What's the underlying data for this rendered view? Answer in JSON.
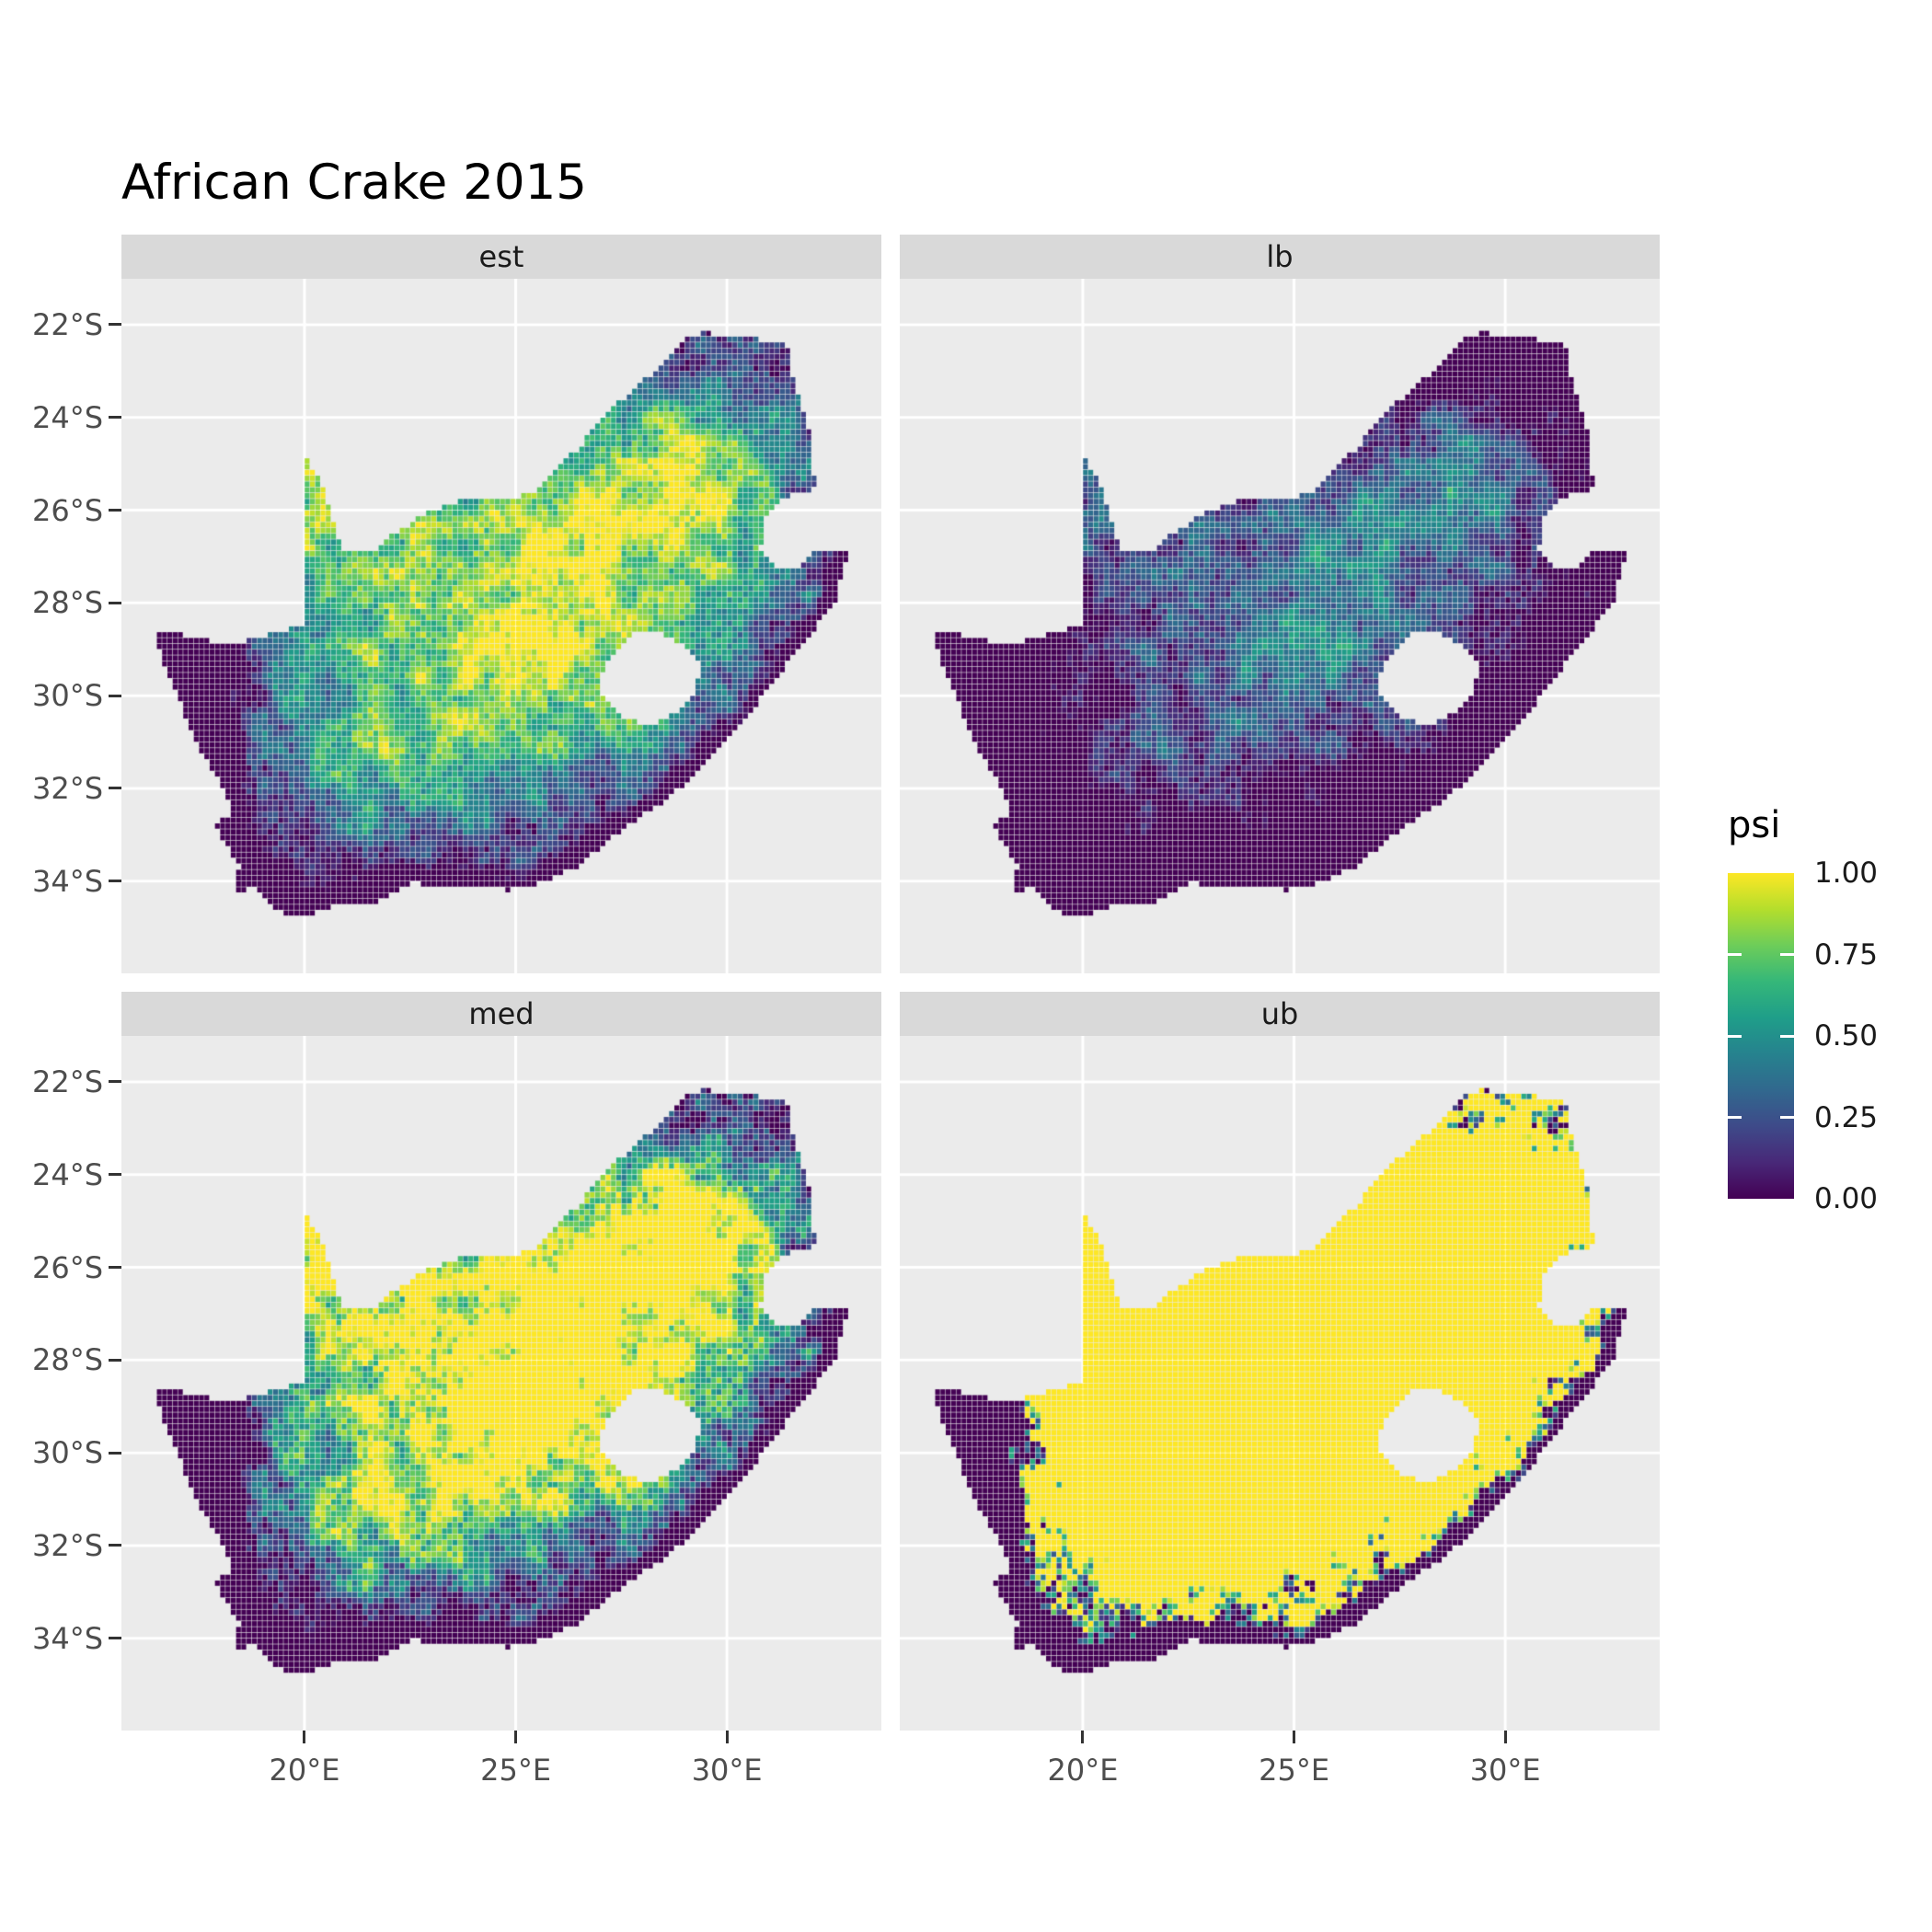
{
  "title": "African Crake 2015",
  "facets": [
    {
      "label": "est"
    },
    {
      "label": "lb"
    },
    {
      "label": "med"
    },
    {
      "label": "ub"
    }
  ],
  "axes": {
    "x_tick_labels": [
      "20°E",
      "25°E",
      "30°E"
    ],
    "y_tick_labels": [
      "22°S",
      "24°S",
      "26°S",
      "28°S",
      "30°S",
      "32°S",
      "34°S"
    ]
  },
  "legend": {
    "title": "psi",
    "tick_labels": [
      "1.00",
      "0.75",
      "0.50",
      "0.25",
      "0.00"
    ]
  },
  "style": {
    "page_bg": "#FFFFFF",
    "panel_bg": "#EBEBEB",
    "strip_bg": "#D9D9D9",
    "grid_color": "#FFFFFF",
    "axis_text_color": "#4D4D4D",
    "tick_mark_color": "#333333",
    "strip_text_color": "#1A1A1A",
    "title_color": "#000000"
  },
  "chart_data": {
    "type": "heatmap",
    "title": "African Crake 2015",
    "region": "South Africa occupancy raster (faceted map)",
    "facet_values": [
      "est",
      "lb",
      "med",
      "ub"
    ],
    "value_name": "psi",
    "value_range": [
      0.0,
      1.0
    ],
    "legend_tick_values": [
      1.0,
      0.75,
      0.5,
      0.25,
      0.0
    ],
    "x_breaks_deg_east": [
      20,
      25,
      30
    ],
    "y_breaks_deg_south": [
      22,
      24,
      26,
      28,
      30,
      32,
      34
    ],
    "x_range_deg_east": [
      15.667,
      33.655
    ],
    "y_range_deg_south": [
      21.008,
      35.99
    ],
    "grid": "major-only",
    "legend_position": "right",
    "cell_deg": 0.125,
    "palette_viridis": [
      "#440154",
      "#482878",
      "#3E4A89",
      "#31688E",
      "#26828E",
      "#1F9E89",
      "#35B779",
      "#6DCD59",
      "#B4DE2C",
      "#FDE725"
    ],
    "boundary_lonlat": [
      [
        16.45,
        -28.6
      ],
      [
        17.3,
        -28.72
      ],
      [
        18.0,
        -28.86
      ],
      [
        18.8,
        -28.8
      ],
      [
        19.4,
        -28.62
      ],
      [
        20.0,
        -28.42
      ],
      [
        20.0,
        -24.8
      ],
      [
        20.35,
        -25.35
      ],
      [
        20.6,
        -25.95
      ],
      [
        20.78,
        -26.5
      ],
      [
        20.95,
        -26.88
      ],
      [
        21.6,
        -26.88
      ],
      [
        22.2,
        -26.45
      ],
      [
        22.9,
        -26.05
      ],
      [
        23.7,
        -25.8
      ],
      [
        24.45,
        -25.78
      ],
      [
        25.1,
        -25.7
      ],
      [
        25.55,
        -25.55
      ],
      [
        25.95,
        -25.05
      ],
      [
        26.5,
        -24.65
      ],
      [
        27.1,
        -23.95
      ],
      [
        27.8,
        -23.4
      ],
      [
        28.4,
        -22.9
      ],
      [
        29.05,
        -22.3
      ],
      [
        29.45,
        -22.15
      ],
      [
        30.0,
        -22.3
      ],
      [
        30.6,
        -22.3
      ],
      [
        31.1,
        -22.35
      ],
      [
        31.4,
        -22.35
      ],
      [
        31.55,
        -23.1
      ],
      [
        31.75,
        -23.7
      ],
      [
        31.95,
        -24.3
      ],
      [
        32.05,
        -25.1
      ],
      [
        32.1,
        -25.55
      ],
      [
        31.4,
        -25.72
      ],
      [
        30.95,
        -26.1
      ],
      [
        30.8,
        -26.8
      ],
      [
        31.15,
        -27.2
      ],
      [
        31.7,
        -27.3
      ],
      [
        32.15,
        -26.85
      ],
      [
        32.9,
        -26.86
      ],
      [
        32.55,
        -28.0
      ],
      [
        32.05,
        -28.6
      ],
      [
        31.35,
        -29.4
      ],
      [
        30.7,
        -30.2
      ],
      [
        30.05,
        -30.95
      ],
      [
        29.25,
        -31.7
      ],
      [
        28.4,
        -32.35
      ],
      [
        27.5,
        -32.9
      ],
      [
        26.45,
        -33.7
      ],
      [
        25.65,
        -34.02
      ],
      [
        24.85,
        -34.2
      ],
      [
        24.0,
        -34.1
      ],
      [
        23.35,
        -34.1
      ],
      [
        22.55,
        -34.05
      ],
      [
        21.7,
        -34.45
      ],
      [
        20.75,
        -34.48
      ],
      [
        20.0,
        -34.83
      ],
      [
        19.3,
        -34.62
      ],
      [
        18.8,
        -34.08
      ],
      [
        18.35,
        -34.3
      ],
      [
        18.45,
        -33.7
      ],
      [
        17.85,
        -32.8
      ],
      [
        18.3,
        -32.55
      ],
      [
        17.95,
        -31.8
      ],
      [
        17.35,
        -30.9
      ],
      [
        16.95,
        -29.9
      ],
      [
        16.6,
        -29.2
      ]
    ],
    "lesotho_hole_lonlat": [
      [
        27.0,
        -29.6
      ],
      [
        27.35,
        -29.05
      ],
      [
        27.75,
        -28.68
      ],
      [
        28.35,
        -28.62
      ],
      [
        28.95,
        -28.9
      ],
      [
        29.45,
        -29.35
      ],
      [
        29.2,
        -29.95
      ],
      [
        28.75,
        -30.4
      ],
      [
        28.1,
        -30.66
      ],
      [
        27.45,
        -30.4
      ],
      [
        27.05,
        -30.05
      ]
    ],
    "field_model": {
      "gaussians_amp_clon_clatS_slon_slat": [
        [
          0.99,
          25.3,
          28.1,
          3.4,
          2.7
        ],
        [
          0.93,
          28.9,
          25.6,
          2.0,
          1.8
        ],
        [
          0.8,
          20.6,
          25.9,
          1.1,
          1.7
        ],
        [
          0.6,
          22.3,
          30.8,
          2.6,
          1.5
        ]
      ],
      "base_scale": 1.08,
      "base_offset": -0.06,
      "west_edge_lon": 19.3,
      "west_rate": 0.3,
      "coast_start_index": 40,
      "coast_fall_max": 0.5,
      "coast_fall_rate": 0.9,
      "noise_octaves_scale_amp": [
        [
          0.55,
          0.42
        ],
        [
          0.22,
          0.28
        ]
      ],
      "cell_jitter_amp": 0.22
    },
    "panel_transforms": {
      "est": [
        1.0,
        0.0
      ],
      "lb": [
        0.85,
        -0.408
      ],
      "med": [
        1.45,
        -0.12
      ],
      "ub": [
        7.2,
        -0.144
      ]
    }
  }
}
